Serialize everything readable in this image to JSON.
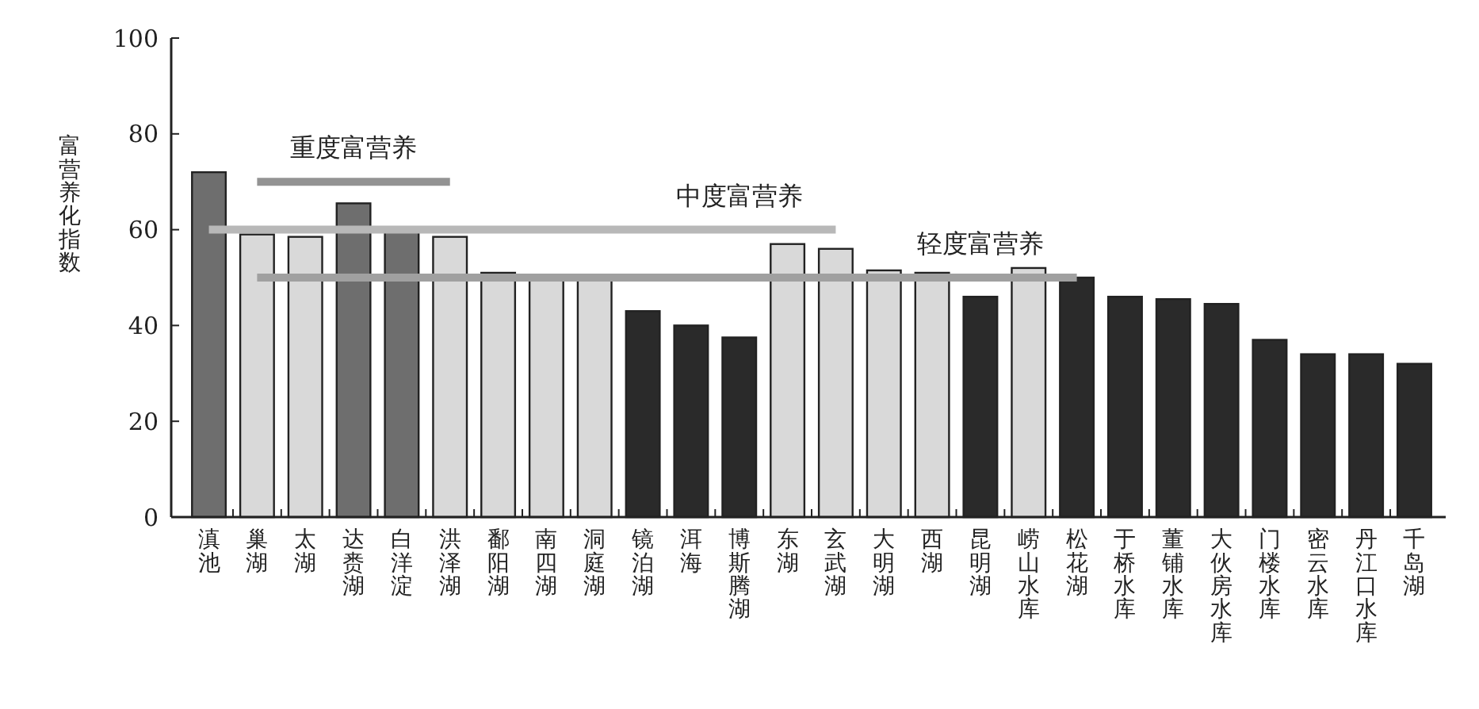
{
  "chart_data": {
    "type": "bar",
    "ylabel": "富营养化指数",
    "categories": [
      "滇池",
      "巢湖",
      "太湖",
      "达赉湖",
      "白洋淀",
      "洪泽湖",
      "鄱阳湖",
      "南四湖",
      "洞庭湖",
      "镜泊湖",
      "洱海",
      "博斯腾湖",
      "东湖",
      "玄武湖",
      "大明湖",
      "西湖",
      "昆明湖",
      "崂山水库",
      "松花湖",
      "于桥水库",
      "董铺水库",
      "大伙房水库",
      "门楼水库",
      "密云水库",
      "丹江口水库",
      "千岛湖"
    ],
    "series": [
      {
        "values": [
          72,
          59,
          58.5,
          65.5,
          60,
          58.5,
          51,
          50,
          50,
          43,
          40,
          37.5,
          57,
          56,
          51.5,
          51,
          46,
          52,
          50,
          46,
          45.5,
          44.5,
          37,
          34,
          34,
          32
        ],
        "colors": [
          "#6e6e6e",
          "#d9d9d9",
          "#d9d9d9",
          "#6e6e6e",
          "#6e6e6e",
          "#d9d9d9",
          "#d9d9d9",
          "#d9d9d9",
          "#d9d9d9",
          "#2a2a2a",
          "#2a2a2a",
          "#2a2a2a",
          "#d9d9d9",
          "#d9d9d9",
          "#d9d9d9",
          "#d9d9d9",
          "#2a2a2a",
          "#d9d9d9",
          "#2a2a2a",
          "#2a2a2a",
          "#2a2a2a",
          "#2a2a2a",
          "#2a2a2a",
          "#2a2a2a",
          "#2a2a2a",
          "#2a2a2a"
        ]
      },
      {
        "type": "line",
        "color": "#939393",
        "values": [
          null,
          70,
          70,
          70,
          70,
          70,
          null,
          null,
          null,
          null,
          null,
          null,
          null,
          null,
          null,
          null,
          null,
          null,
          null,
          null,
          null,
          null,
          null,
          null,
          null,
          null
        ]
      },
      {
        "type": "line",
        "color": "#b8b8b8",
        "values": [
          60,
          60,
          60,
          60,
          60,
          60,
          60,
          60,
          60,
          60,
          60,
          60,
          60,
          60,
          null,
          null,
          null,
          null,
          null,
          null,
          null,
          null,
          null,
          null,
          null,
          null
        ]
      },
      {
        "type": "line",
        "color": "#a0a0a0",
        "values": [
          null,
          50,
          50,
          50,
          50,
          50,
          50,
          50,
          50,
          50,
          50,
          50,
          50,
          50,
          50,
          50,
          50,
          50,
          50,
          null,
          null,
          null,
          null,
          null,
          null,
          null
        ]
      }
    ],
    "annotations": [
      "重度富营养",
      "中度富营养",
      "轻度富营养"
    ],
    "ylim": [
      0,
      100
    ],
    "yticks": [
      0,
      20,
      40,
      60,
      80,
      100
    ],
    "grid": false,
    "marker": "none",
    "line_style": "solid"
  }
}
